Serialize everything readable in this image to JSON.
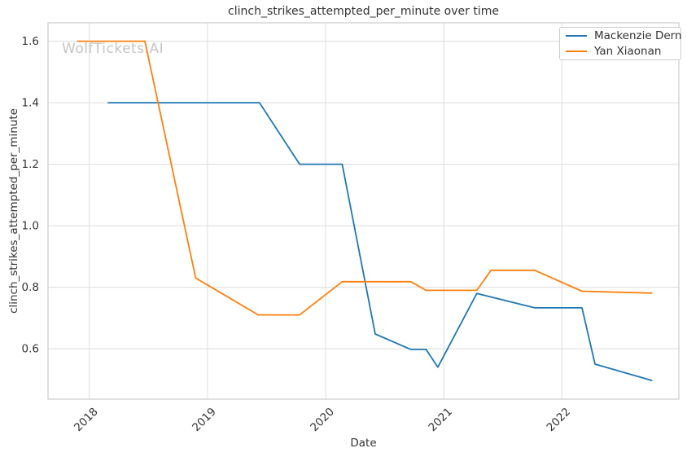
{
  "watermark": {
    "text": "WolfTickets.AI",
    "color": "#c6c6c6"
  },
  "chart_data": {
    "type": "line",
    "title": "clinch_strikes_attempted_per_minute over time",
    "xlabel": "Date",
    "ylabel": "clinch_strikes_attempted_per_minute",
    "xlim": [
      2017.65,
      2022.99
    ],
    "ylim": [
      0.436,
      1.66
    ],
    "grid": true,
    "legend_position": "upper right",
    "x_ticks": {
      "values": [
        2018,
        2019,
        2020,
        2021,
        2022
      ],
      "labels": [
        "2018",
        "2019",
        "2020",
        "2021",
        "2022"
      ],
      "rotation": 45
    },
    "y_ticks": {
      "values": [
        0.6,
        0.8,
        1.0,
        1.2,
        1.4,
        1.6
      ],
      "labels": [
        "0.6",
        "0.8",
        "1.0",
        "1.2",
        "1.4",
        "1.6"
      ]
    },
    "series": [
      {
        "name": "Mackenzie Dern",
        "color": "#1f77b4",
        "points": [
          [
            2018.16,
            1.4
          ],
          [
            2019.44,
            1.4
          ],
          [
            2019.78,
            1.2
          ],
          [
            2020.14,
            1.2
          ],
          [
            2020.42,
            0.648
          ],
          [
            2020.72,
            0.598
          ],
          [
            2020.85,
            0.598
          ],
          [
            2020.95,
            0.54
          ],
          [
            2021.28,
            0.78
          ],
          [
            2021.77,
            0.733
          ],
          [
            2022.17,
            0.733
          ],
          [
            2022.28,
            0.55
          ],
          [
            2022.76,
            0.497
          ]
        ]
      },
      {
        "name": "Yan Xiaonan",
        "color": "#ff7f0e",
        "points": [
          [
            2017.9,
            1.6
          ],
          [
            2018.47,
            1.6
          ],
          [
            2018.9,
            0.83
          ],
          [
            2019.43,
            0.71
          ],
          [
            2019.78,
            0.71
          ],
          [
            2020.14,
            0.818
          ],
          [
            2020.72,
            0.818
          ],
          [
            2020.85,
            0.79
          ],
          [
            2021.28,
            0.79
          ],
          [
            2021.4,
            0.855
          ],
          [
            2021.77,
            0.855
          ],
          [
            2022.17,
            0.787
          ],
          [
            2022.76,
            0.781
          ]
        ]
      }
    ],
    "style": {
      "grid_color": "#dcdcdc",
      "spine_color": "#cccccc",
      "tick_label_color": "#333333",
      "line_width": 1.8
    }
  }
}
